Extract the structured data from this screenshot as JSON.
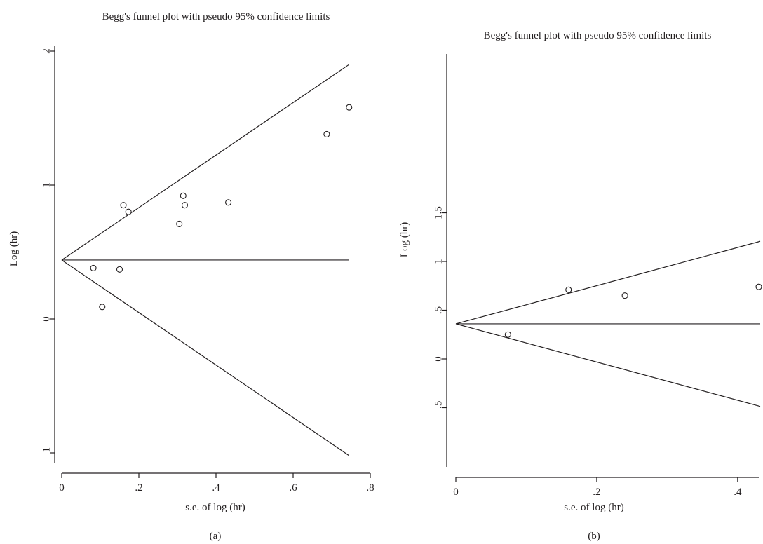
{
  "chart_data": [
    {
      "type": "scatter",
      "panel_label": "(a)",
      "title": "Begg's funnel plot with pseudo 95% confidence limits",
      "xlabel": "s.e. of log (hr)",
      "ylabel": "Log (hr)",
      "xlim": [
        0,
        0.8
      ],
      "ylim": [
        -1,
        2
      ],
      "xticks": [
        0,
        0.2,
        0.4,
        0.6,
        0.8
      ],
      "xtick_labels": [
        "0",
        ".2",
        ".4",
        ".6",
        ".8"
      ],
      "yticks": [
        -1,
        0,
        1,
        2
      ],
      "ytick_labels": [
        "−1",
        "0",
        "1",
        "2"
      ],
      "pooled_estimate": 0.44,
      "funnel_xmax": 0.745,
      "points": [
        {
          "x": 0.082,
          "y": 0.38
        },
        {
          "x": 0.105,
          "y": 0.09
        },
        {
          "x": 0.15,
          "y": 0.37
        },
        {
          "x": 0.16,
          "y": 0.85
        },
        {
          "x": 0.173,
          "y": 0.8
        },
        {
          "x": 0.305,
          "y": 0.71
        },
        {
          "x": 0.315,
          "y": 0.92
        },
        {
          "x": 0.319,
          "y": 0.85
        },
        {
          "x": 0.432,
          "y": 0.87
        },
        {
          "x": 0.687,
          "y": 1.38
        },
        {
          "x": 0.745,
          "y": 1.58
        }
      ]
    },
    {
      "type": "scatter",
      "panel_label": "(b)",
      "title": "Begg's funnel plot with pseudo 95% confidence limits",
      "xlabel": "s.e. of log (hr)",
      "ylabel": "Log (hr)",
      "xlim": [
        0,
        0.43
      ],
      "ylim": [
        -0.5,
        1.5
      ],
      "xticks": [
        0,
        0.2,
        0.4
      ],
      "xtick_labels": [
        "0",
        ".2",
        ".4"
      ],
      "yticks": [
        -0.5,
        0,
        0.5,
        1,
        1.5
      ],
      "ytick_labels": [
        "−.5",
        "0",
        ".5",
        "1",
        "1.5"
      ],
      "pooled_estimate": 0.36,
      "funnel_xmax": 0.432,
      "points": [
        {
          "x": 0.074,
          "y": 0.25
        },
        {
          "x": 0.16,
          "y": 0.71
        },
        {
          "x": 0.24,
          "y": 0.65
        },
        {
          "x": 0.43,
          "y": 0.74
        }
      ]
    }
  ]
}
